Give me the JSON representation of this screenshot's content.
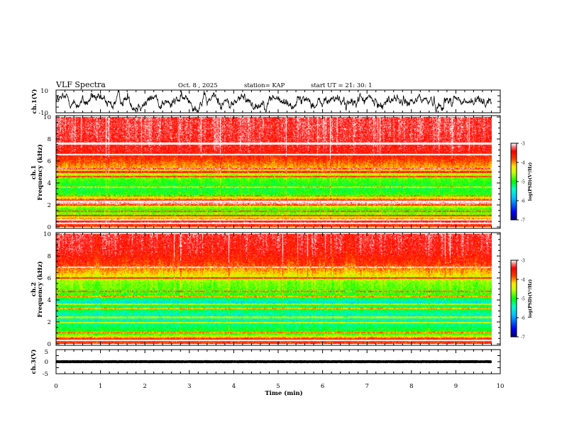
{
  "header": {
    "title": "VLF Spectra",
    "date": "Oct. 8 , 2025",
    "station": "station= KAP",
    "start": "start  UT =  21: 30: 1"
  },
  "chart_data": [
    {
      "type": "line",
      "name": "ch1-waveform",
      "ylabel": "ch.1(V)",
      "ylim": [
        -10,
        10
      ],
      "yticks": [
        "10",
        "-10"
      ],
      "xlim": [
        0,
        10
      ],
      "description_values": {
        "mean": 0,
        "amplitude_range": [
          -9,
          9
        ],
        "duration_min": 9.8
      },
      "color": "#000000"
    },
    {
      "type": "heatmap",
      "name": "ch1-spectrogram",
      "ylabel": "ch.1",
      "ylabel2": "Frequency (kHz)",
      "ylim": [
        0,
        10
      ],
      "yticks": [
        "0",
        "2",
        "4",
        "6",
        "8",
        "10"
      ],
      "xlim": [
        0,
        9.8
      ],
      "colorbar": {
        "ticks": [
          "-3",
          "-4",
          "-5",
          "-6",
          "-7"
        ],
        "label": "log(PSD)(V²/Hz)",
        "range": [
          -7,
          -3
        ]
      },
      "frequency_profile_logpsd": [
        [
          0,
          -3.8
        ],
        [
          0.4,
          -3.3
        ],
        [
          1,
          -4.6
        ],
        [
          1.6,
          -4.9
        ],
        [
          2.0,
          -4.2
        ],
        [
          2.4,
          -3.6
        ],
        [
          2.8,
          -4.9
        ],
        [
          3.6,
          -5.1
        ],
        [
          4.2,
          -4.9
        ],
        [
          4.8,
          -4.5
        ],
        [
          5.2,
          -4.2
        ],
        [
          5.6,
          -4.0
        ],
        [
          6.2,
          -3.7
        ],
        [
          7.0,
          -3.45
        ],
        [
          8.0,
          -3.35
        ],
        [
          9.0,
          -3.3
        ],
        [
          10,
          -3.3
        ]
      ],
      "lines_khz": [
        0.3,
        0.6,
        1.0,
        1.4,
        2.0,
        2.2,
        2.3,
        2.8,
        3.6,
        4.6,
        5.0,
        5.3,
        6.6,
        7.6
      ]
    },
    {
      "type": "heatmap",
      "name": "ch2-spectrogram",
      "ylabel": "ch.2",
      "ylabel2": "Frequency (kHz)",
      "ylim": [
        0,
        10
      ],
      "yticks": [
        "0",
        "2",
        "4",
        "6",
        "8",
        "10"
      ],
      "xlim": [
        0,
        9.8
      ],
      "colorbar": {
        "ticks": [
          "-3",
          "-4",
          "-5",
          "-6",
          "-7"
        ],
        "label": "log(PSD)(V²/Hz)",
        "range": [
          -7,
          -3
        ]
      },
      "frequency_profile_logpsd": [
        [
          0,
          -3.8
        ],
        [
          0.4,
          -3.5
        ],
        [
          0.8,
          -4.8
        ],
        [
          1.6,
          -5.2
        ],
        [
          2.0,
          -5.4
        ],
        [
          2.6,
          -5.5
        ],
        [
          3.2,
          -5.0
        ],
        [
          3.8,
          -5.6
        ],
        [
          4.2,
          -5.0
        ],
        [
          5.0,
          -4.8
        ],
        [
          5.6,
          -4.7
        ],
        [
          6.4,
          -4.2
        ],
        [
          7.4,
          -3.7
        ],
        [
          8.4,
          -3.45
        ],
        [
          10,
          -3.35
        ]
      ],
      "lines_khz": [
        0.3,
        1.0,
        1.9,
        2.4,
        3.2,
        3.6,
        4.3,
        4.8,
        6.0,
        7.0
      ]
    },
    {
      "type": "line",
      "name": "ch3-waveform",
      "ylabel": "ch.3(V)",
      "ylim": [
        -5,
        5
      ],
      "yticks": [
        "5",
        "0",
        "-5"
      ],
      "xlim": [
        0,
        10
      ],
      "description_values": {
        "mean": 0,
        "amplitude": 0.6,
        "duration_min": 9.8
      },
      "color": "#000000"
    }
  ],
  "xaxis": {
    "label": "Time (min)",
    "ticks": [
      "0",
      "1",
      "2",
      "3",
      "4",
      "5",
      "6",
      "7",
      "8",
      "9",
      "10"
    ],
    "range": [
      0,
      10
    ]
  }
}
